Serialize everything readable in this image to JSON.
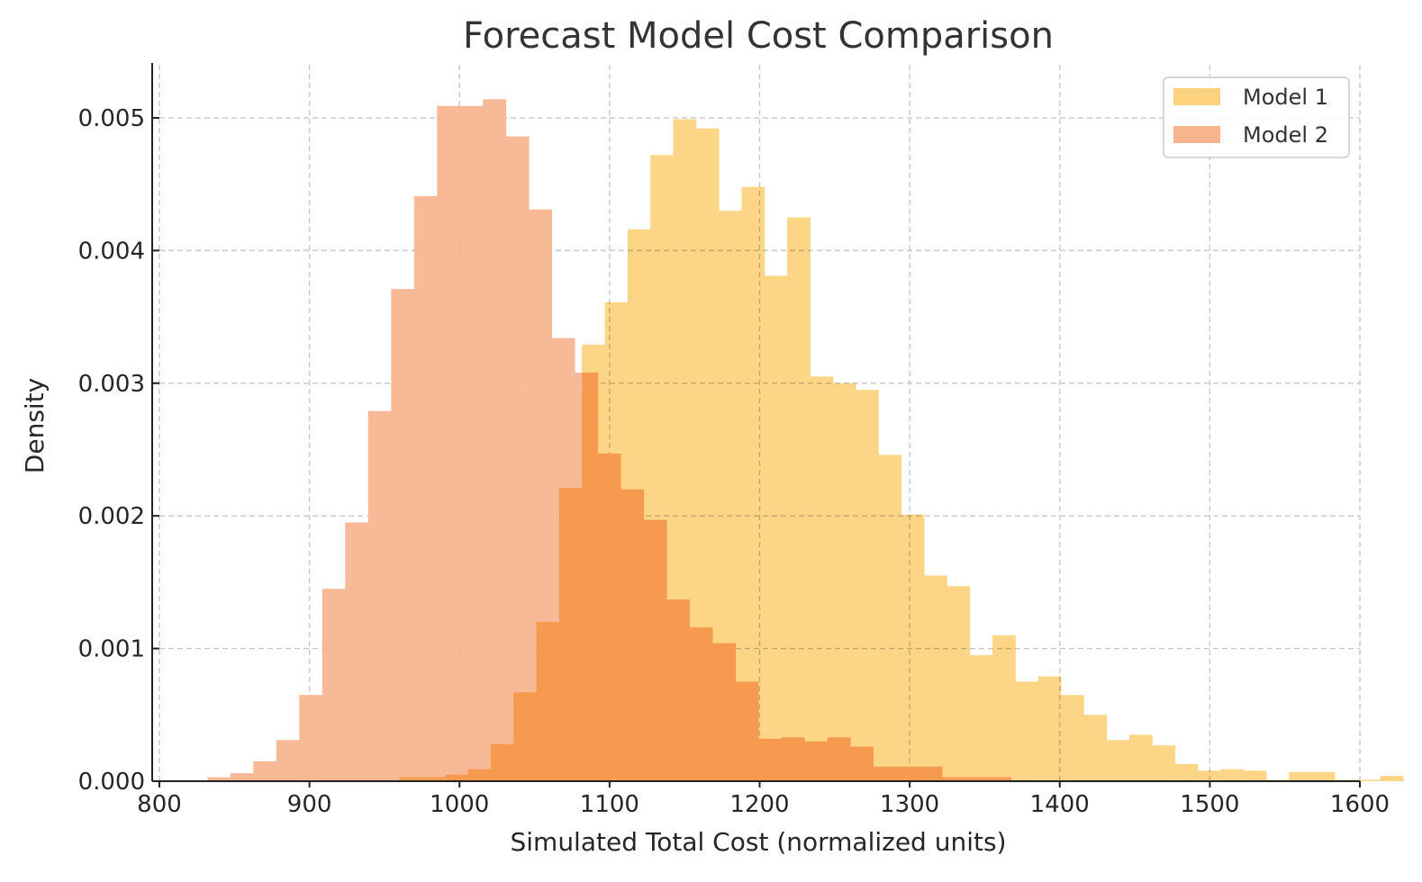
{
  "chart_data": {
    "type": "histogram",
    "title": "Forecast Model Cost Comparison",
    "xlabel": "Simulated Total Cost (normalized units)",
    "ylabel": "Density",
    "xlim": [
      800,
      1600
    ],
    "ylim": [
      0,
      0.0054
    ],
    "xticks": [
      "800",
      "900",
      "1000",
      "1100",
      "1200",
      "1300",
      "1400",
      "1500",
      "1600"
    ],
    "yticks": [
      "0.000",
      "0.001",
      "0.002",
      "0.003",
      "0.004",
      "0.005"
    ],
    "xtick_values": [
      800,
      900,
      1000,
      1100,
      1200,
      1300,
      1400,
      1500,
      1600
    ],
    "ytick_values": [
      0,
      0.001,
      0.002,
      0.003,
      0.004,
      0.005
    ],
    "grid": true,
    "legend_position": "top-right",
    "series": [
      {
        "name": "Model 1",
        "color": "#fdd27e",
        "bin_start": 960,
        "bin_width": 15.2,
        "densities": [
          3e-05,
          3e-05,
          5e-05,
          9e-05,
          0.00028,
          0.00067,
          0.0012,
          0.00221,
          0.00329,
          0.00361,
          0.00416,
          0.00472,
          0.00499,
          0.00492,
          0.0043,
          0.00448,
          0.00381,
          0.00425,
          0.00305,
          0.003,
          0.00295,
          0.00246,
          0.00201,
          0.00155,
          0.00147,
          0.00095,
          0.0011,
          0.00075,
          0.00079,
          0.00065,
          0.0005,
          0.00031,
          0.00035,
          0.00027,
          0.00013,
          8e-05,
          9e-05,
          8e-05,
          1e-05,
          7e-05,
          7e-05,
          1e-05,
          1e-05,
          4e-05
        ]
      },
      {
        "name": "Model 2",
        "color": "#f8b48f",
        "bin_start": 832,
        "bin_width": 15.3,
        "densities": [
          3e-05,
          6e-05,
          0.00015,
          0.00031,
          0.00065,
          0.00145,
          0.00195,
          0.00279,
          0.00371,
          0.00441,
          0.00509,
          0.00509,
          0.00514,
          0.00486,
          0.00431,
          0.00334,
          0.00308,
          0.00247,
          0.0022,
          0.00197,
          0.00137,
          0.00116,
          0.00104,
          0.00075,
          0.00032,
          0.00033,
          0.0003,
          0.00033,
          0.00026,
          0.00011,
          0.00011,
          0.00011,
          3e-05,
          3e-05,
          3e-05
        ]
      }
    ]
  }
}
